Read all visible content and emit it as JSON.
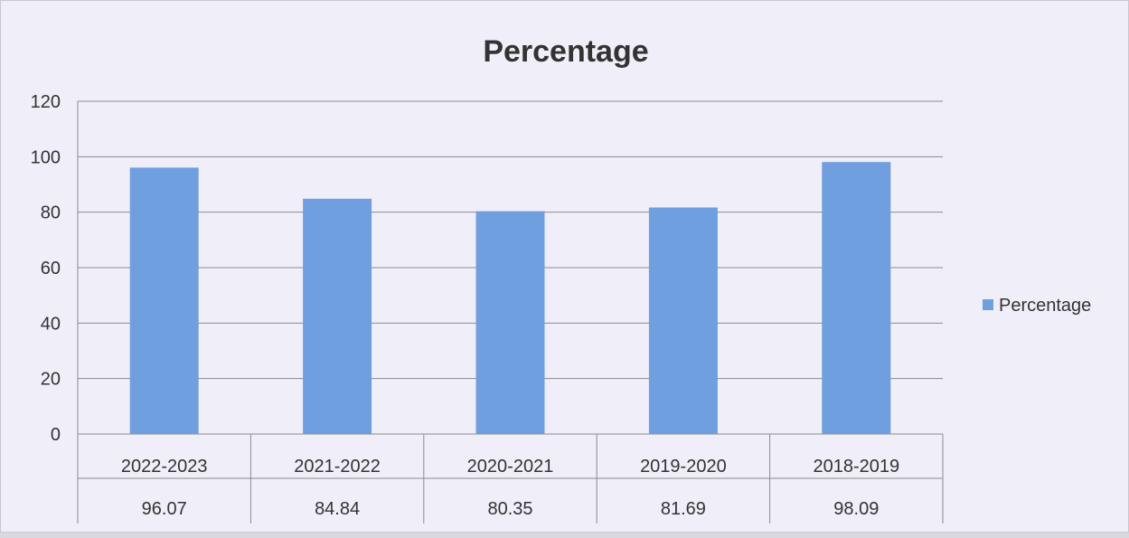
{
  "chart_data": {
    "type": "bar",
    "title": "Percentage",
    "categories": [
      "2022-2023",
      "2021-2022",
      "2020-2021",
      "2019-2020",
      "2018-2019"
    ],
    "series": [
      {
        "name": "Percentage",
        "values": [
          96.07,
          84.84,
          80.35,
          81.69,
          98.09
        ],
        "color": "#6f9fdf"
      }
    ],
    "data_labels": [
      "96.07",
      "84.84",
      "80.35",
      "81.69",
      "98.09"
    ],
    "yticks": [
      "0",
      "20",
      "40",
      "60",
      "80",
      "100",
      "120"
    ],
    "ylim": [
      0,
      120
    ],
    "grid": true,
    "legend": "right",
    "data_table": true
  }
}
